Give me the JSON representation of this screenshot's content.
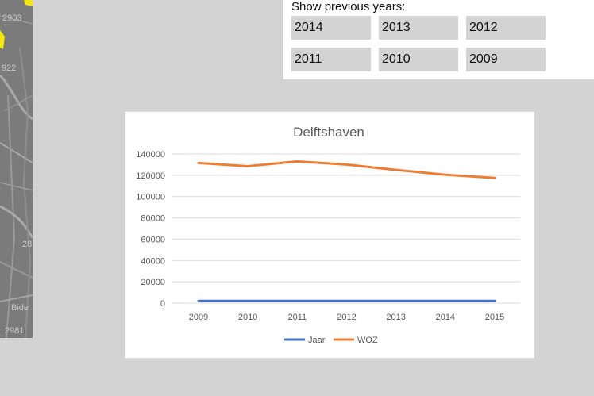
{
  "map": {
    "labels": [
      "2903",
      "922",
      "2981",
      "Bide",
      "28"
    ]
  },
  "years_panel": {
    "title": "Show previous years:",
    "years": [
      "2014",
      "2013",
      "2012",
      "2011",
      "2010",
      "2009"
    ]
  },
  "chart_data": {
    "type": "line",
    "title": "Delftshaven",
    "categories": [
      "2009",
      "2010",
      "2011",
      "2012",
      "2013",
      "2014",
      "2015"
    ],
    "series": [
      {
        "name": "Jaar",
        "color": "#4472c4",
        "values": [
          2009,
          2010,
          2011,
          2012,
          2013,
          2014,
          2015
        ]
      },
      {
        "name": "WOZ",
        "color": "#ed7d31",
        "values": [
          131500,
          128500,
          133000,
          130000,
          125000,
          120500,
          117500
        ]
      }
    ],
    "y_ticks": [
      "0",
      "20000",
      "40000",
      "60000",
      "80000",
      "100000",
      "120000",
      "140000"
    ],
    "ylim": [
      0,
      140000
    ],
    "grid": true,
    "legend": "bottom"
  }
}
